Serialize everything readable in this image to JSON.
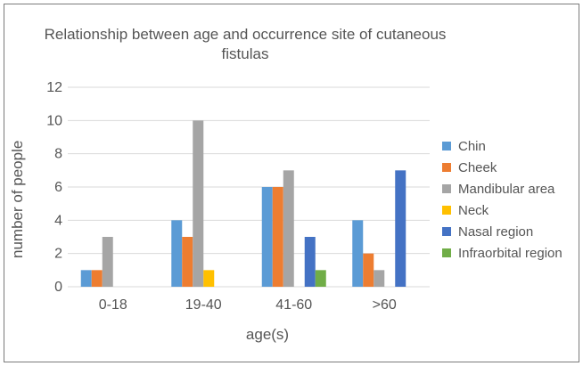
{
  "chart_data": {
    "type": "bar",
    "title": "Relationship between age and occurrence site of cutaneous fistulas",
    "xlabel": "age(s)",
    "ylabel": "number of people",
    "ylim": [
      0,
      12
    ],
    "yticks": [
      "0",
      "2",
      "4",
      "6",
      "8",
      "10",
      "12"
    ],
    "categories": [
      "0-18",
      "19-40",
      "41-60",
      ">60"
    ],
    "grid": true,
    "legend": "right",
    "series": [
      {
        "name": "Chin",
        "color": "#5b9bd5",
        "values": [
          1,
          4,
          6,
          4
        ]
      },
      {
        "name": "Cheek",
        "color": "#ed7d31",
        "values": [
          1,
          3,
          6,
          2
        ]
      },
      {
        "name": "Mandibular area",
        "color": "#a5a5a5",
        "values": [
          3,
          10,
          7,
          1
        ]
      },
      {
        "name": "Neck",
        "color": "#ffc000",
        "values": [
          0,
          1,
          0,
          0
        ]
      },
      {
        "name": "Nasal region",
        "color": "#4472c4",
        "values": [
          0,
          0,
          3,
          7
        ]
      },
      {
        "name": "Infraorbital region",
        "color": "#70ad47",
        "values": [
          0,
          0,
          1,
          0
        ]
      }
    ]
  }
}
